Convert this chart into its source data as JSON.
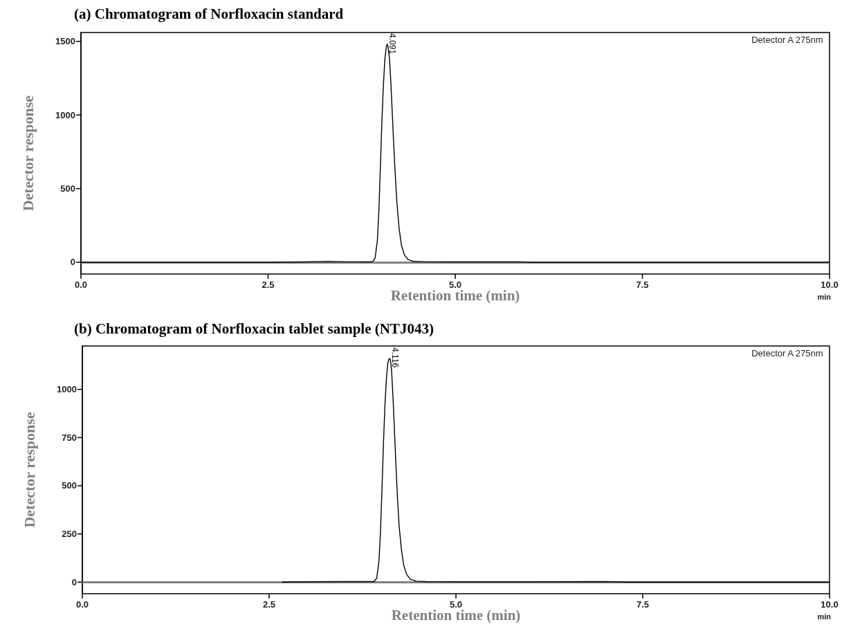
{
  "chart_data": [
    {
      "type": "line",
      "title": "(a) Chromatogram of Norfloxacin standard",
      "xlabel": "Retention time (min)",
      "ylabel": "Detector response",
      "annotations": [
        "Detector A 275nm",
        "min",
        {
          "text": "4.091",
          "x": 4.091,
          "y": 1480
        }
      ],
      "series": [
        {
          "color": "#000000",
          "x": [
            0,
            2.5,
            3.0,
            3.3,
            3.6,
            3.85,
            3.9,
            3.93,
            3.96,
            3.98,
            4.0,
            4.02,
            4.04,
            4.06,
            4.08,
            4.091,
            4.1,
            4.12,
            4.14,
            4.16,
            4.18,
            4.2,
            4.22,
            4.25,
            4.28,
            4.32,
            4.37,
            4.44,
            4.6,
            5.0,
            5.9,
            6.0,
            10
          ],
          "values": [
            0,
            0,
            2,
            5,
            3,
            2,
            5,
            30,
            150,
            350,
            650,
            950,
            1200,
            1380,
            1465,
            1480,
            1470,
            1390,
            1220,
            1000,
            780,
            580,
            410,
            230,
            120,
            50,
            18,
            6,
            3,
            2,
            2,
            0,
            0
          ]
        }
      ],
      "xlim": [
        0,
        10
      ],
      "xticks": [
        {
          "value": 0,
          "label": "0.0"
        },
        {
          "value": 2.5,
          "label": "2.5"
        },
        {
          "value": 5,
          "label": "5.0"
        },
        {
          "value": 7.5,
          "label": "7.5"
        },
        {
          "value": 10,
          "label": "10.0"
        }
      ],
      "ylim": [
        -80,
        1560
      ],
      "yticks": [
        0,
        500,
        1000,
        1500
      ],
      "ref_lines": [
        {
          "axis": "y",
          "value": 0,
          "color": "#808080"
        }
      ],
      "grid": false,
      "marker": "none",
      "line_style": "solid"
    },
    {
      "type": "line",
      "title": "(b) Chromatogram of Norfloxacin tablet sample (NTJ043)",
      "xlabel": "Retention time (min)",
      "ylabel": "Detector response",
      "annotations": [
        "Detector A 275nm",
        "min",
        {
          "text": "4.116",
          "x": 4.116,
          "y": 1160
        }
      ],
      "series": [
        {
          "color": "#000000",
          "x": [
            2.67,
            3.0,
            3.5,
            3.9,
            3.94,
            3.97,
            3.99,
            4.01,
            4.03,
            4.05,
            4.07,
            4.09,
            4.105,
            4.116,
            4.125,
            4.14,
            4.16,
            4.18,
            4.2,
            4.22,
            4.24,
            4.27,
            4.3,
            4.34,
            4.39,
            4.47,
            4.6,
            5.0,
            6.0,
            7.0,
            7.3,
            10
          ],
          "values": [
            0,
            2,
            3,
            3,
            20,
            110,
            260,
            480,
            720,
            920,
            1060,
            1140,
            1158,
            1160,
            1150,
            1090,
            940,
            760,
            580,
            420,
            290,
            170,
            90,
            40,
            15,
            5,
            3,
            2,
            2,
            3,
            0,
            0
          ]
        }
      ],
      "xlim": [
        0,
        10
      ],
      "xticks": [
        {
          "value": 0,
          "label": "0.0"
        },
        {
          "value": 2.5,
          "label": "2.5"
        },
        {
          "value": 5,
          "label": "5.0"
        },
        {
          "value": 7.5,
          "label": "7.5"
        },
        {
          "value": 10,
          "label": "10.0"
        }
      ],
      "ylim": [
        -60,
        1225
      ],
      "yticks": [
        0,
        250,
        500,
        750,
        1000
      ],
      "ref_lines": [
        {
          "axis": "y",
          "value": 0,
          "color": "#808080"
        }
      ],
      "grid": false,
      "marker": "none",
      "line_style": "solid"
    }
  ]
}
